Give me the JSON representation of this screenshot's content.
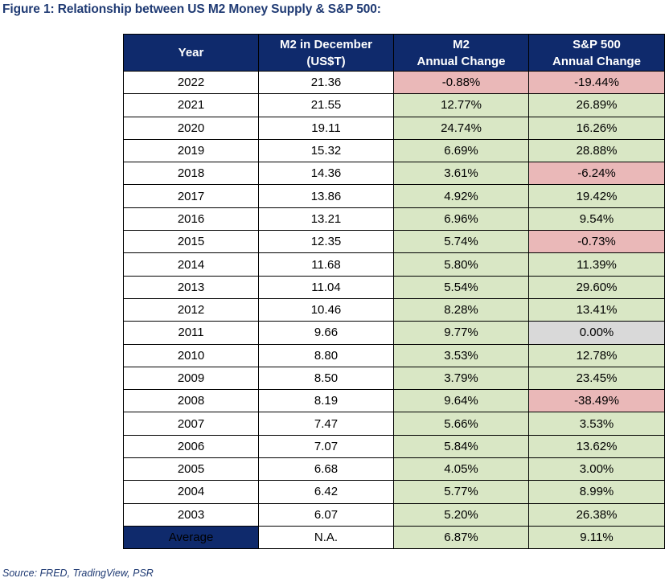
{
  "title": "Figure 1: Relationship between US M2 Money Supply & S&P 500:",
  "headers": {
    "year": "Year",
    "m2_line1": "M2 in December",
    "m2_line2": "(US$T)",
    "m2c_line1": "M2",
    "m2c_line2": "Annual Change",
    "sp_line1": "S&P 500",
    "sp_line2": "Annual Change"
  },
  "rows": [
    {
      "year": "2022",
      "m2": "21.36",
      "m2_change": "-0.88%",
      "m2_status": "neg",
      "sp_change": "-19.44%",
      "sp_status": "neg"
    },
    {
      "year": "2021",
      "m2": "21.55",
      "m2_change": "12.77%",
      "m2_status": "pos",
      "sp_change": "26.89%",
      "sp_status": "pos"
    },
    {
      "year": "2020",
      "m2": "19.11",
      "m2_change": "24.74%",
      "m2_status": "pos",
      "sp_change": "16.26%",
      "sp_status": "pos"
    },
    {
      "year": "2019",
      "m2": "15.32",
      "m2_change": "6.69%",
      "m2_status": "pos",
      "sp_change": "28.88%",
      "sp_status": "pos"
    },
    {
      "year": "2018",
      "m2": "14.36",
      "m2_change": "3.61%",
      "m2_status": "pos",
      "sp_change": "-6.24%",
      "sp_status": "neg"
    },
    {
      "year": "2017",
      "m2": "13.86",
      "m2_change": "4.92%",
      "m2_status": "pos",
      "sp_change": "19.42%",
      "sp_status": "pos"
    },
    {
      "year": "2016",
      "m2": "13.21",
      "m2_change": "6.96%",
      "m2_status": "pos",
      "sp_change": "9.54%",
      "sp_status": "pos"
    },
    {
      "year": "2015",
      "m2": "12.35",
      "m2_change": "5.74%",
      "m2_status": "pos",
      "sp_change": "-0.73%",
      "sp_status": "neg"
    },
    {
      "year": "2014",
      "m2": "11.68",
      "m2_change": "5.80%",
      "m2_status": "pos",
      "sp_change": "11.39%",
      "sp_status": "pos"
    },
    {
      "year": "2013",
      "m2": "11.04",
      "m2_change": "5.54%",
      "m2_status": "pos",
      "sp_change": "29.60%",
      "sp_status": "pos"
    },
    {
      "year": "2012",
      "m2": "10.46",
      "m2_change": "8.28%",
      "m2_status": "pos",
      "sp_change": "13.41%",
      "sp_status": "pos"
    },
    {
      "year": "2011",
      "m2": "9.66",
      "m2_change": "9.77%",
      "m2_status": "pos",
      "sp_change": "0.00%",
      "sp_status": "zero"
    },
    {
      "year": "2010",
      "m2": "8.80",
      "m2_change": "3.53%",
      "m2_status": "pos",
      "sp_change": "12.78%",
      "sp_status": "pos"
    },
    {
      "year": "2009",
      "m2": "8.50",
      "m2_change": "3.79%",
      "m2_status": "pos",
      "sp_change": "23.45%",
      "sp_status": "pos"
    },
    {
      "year": "2008",
      "m2": "8.19",
      "m2_change": "9.64%",
      "m2_status": "pos",
      "sp_change": "-38.49%",
      "sp_status": "neg"
    },
    {
      "year": "2007",
      "m2": "7.47",
      "m2_change": "5.66%",
      "m2_status": "pos",
      "sp_change": "3.53%",
      "sp_status": "pos"
    },
    {
      "year": "2006",
      "m2": "7.07",
      "m2_change": "5.84%",
      "m2_status": "pos",
      "sp_change": "13.62%",
      "sp_status": "pos"
    },
    {
      "year": "2005",
      "m2": "6.68",
      "m2_change": "4.05%",
      "m2_status": "pos",
      "sp_change": "3.00%",
      "sp_status": "pos"
    },
    {
      "year": "2004",
      "m2": "6.42",
      "m2_change": "5.77%",
      "m2_status": "pos",
      "sp_change": "8.99%",
      "sp_status": "pos"
    },
    {
      "year": "2003",
      "m2": "6.07",
      "m2_change": "5.20%",
      "m2_status": "pos",
      "sp_change": "26.38%",
      "sp_status": "pos"
    }
  ],
  "average": {
    "label": "Average",
    "m2": "N.A.",
    "m2_change": "6.87%",
    "m2_status": "pos",
    "sp_change": "9.11%",
    "sp_status": "pos"
  },
  "colors": {
    "header_bg": "#0f2a6c",
    "positive_bg": "#d9e7c5",
    "negative_bg": "#eab8b8",
    "neutral_bg": "#d9d9d9",
    "title_text": "#1f3a73"
  },
  "source": "Source: FRED, TradingView, PSR"
}
